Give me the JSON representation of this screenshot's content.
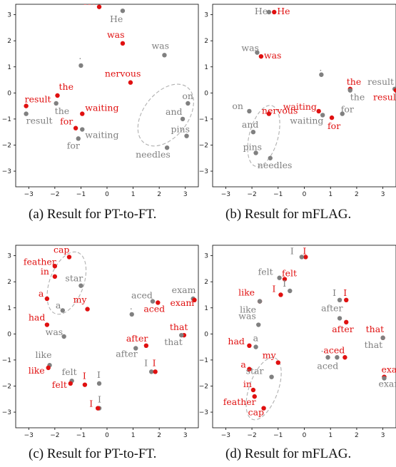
{
  "colors": {
    "gray": "#808080",
    "red": "#e01010",
    "ellipse": "#b0b0b0"
  },
  "chart_data": [
    {
      "type": "scatter",
      "caption": "(a) Result for PT-to-FT.",
      "xlim": [
        -3.5,
        3.5
      ],
      "ylim": [
        -3.6,
        3.4
      ],
      "xticks": [
        -3,
        -2,
        -1,
        0,
        1,
        2,
        3
      ],
      "yticks": [
        3,
        2,
        1,
        0,
        -1,
        -2,
        -3
      ],
      "points": [
        {
          "text": "He",
          "x": -0.3,
          "y": 3.3,
          "c": "red",
          "dx": -22,
          "dy": -3
        },
        {
          "text": "He",
          "x": 0.6,
          "y": 3.15,
          "c": "gray",
          "dx": -18,
          "dy": 16
        },
        {
          "text": "was",
          "x": 0.6,
          "y": 1.9,
          "c": "red",
          "dx": -22,
          "dy": -8
        },
        {
          "text": "was",
          "x": 2.2,
          "y": 1.45,
          "c": "gray",
          "dx": -18,
          "dy": -9
        },
        {
          "text": ".",
          "x": -1.0,
          "y": 1.05,
          "c": "gray",
          "dx": -3,
          "dy": -9
        },
        {
          "text": "nervous",
          "x": 0.9,
          "y": 0.4,
          "c": "red",
          "dx": -36,
          "dy": -8
        },
        {
          "text": "result",
          "x": -3.1,
          "y": -0.5,
          "c": "red",
          "dx": -2,
          "dy": -5
        },
        {
          "text": "the",
          "x": -1.9,
          "y": -0.1,
          "c": "red",
          "dx": 2,
          "dy": -8
        },
        {
          "text": "result",
          "x": -3.1,
          "y": -0.8,
          "c": "gray",
          "dx": 0,
          "dy": 14
        },
        {
          "text": "the",
          "x": -1.95,
          "y": -0.4,
          "c": "gray",
          "dx": -2,
          "dy": 15
        },
        {
          "text": "waiting",
          "x": -0.95,
          "y": -0.8,
          "c": "red",
          "dx": 4,
          "dy": -4
        },
        {
          "text": "for",
          "x": -1.2,
          "y": -1.35,
          "c": "red",
          "dx": -22,
          "dy": -5
        },
        {
          "text": "waiting",
          "x": -0.95,
          "y": -1.4,
          "c": "gray",
          "dx": 4,
          "dy": 12
        },
        {
          "text": "for",
          "x": -1.1,
          "y": -1.75,
          "c": "gray",
          "dx": -16,
          "dy": 14
        },
        {
          "text": "on",
          "x": 3.1,
          "y": -0.4,
          "c": "gray",
          "dx": -8,
          "dy": -6
        },
        {
          "text": "and",
          "x": 2.9,
          "y": -1.0,
          "c": "gray",
          "dx": -24,
          "dy": -6
        },
        {
          "text": "pins",
          "x": 3.05,
          "y": -1.65,
          "c": "gray",
          "dx": -22,
          "dy": -5
        },
        {
          "text": "needles",
          "x": 2.3,
          "y": -2.1,
          "c": "gray",
          "dx": -44,
          "dy": 14
        }
      ],
      "ellipses": [
        {
          "cx": 2.25,
          "cy": -0.85,
          "rx": 1.35,
          "ry": 0.85,
          "rot": -52
        }
      ]
    },
    {
      "type": "scatter",
      "caption": "(b) Result for mFLAG.",
      "xlim": [
        -3.5,
        3.5
      ],
      "ylim": [
        -3.6,
        3.4
      ],
      "xticks": [
        -3,
        -2,
        -1,
        0,
        1,
        2,
        3
      ],
      "yticks": [
        3,
        2,
        1,
        0,
        -1,
        -2,
        -3
      ],
      "points": [
        {
          "text": "He",
          "x": -1.35,
          "y": 3.1,
          "c": "gray",
          "dx": -20,
          "dy": 3
        },
        {
          "text": "He",
          "x": -1.15,
          "y": 3.1,
          "c": "red",
          "dx": 4,
          "dy": 3
        },
        {
          "text": "was",
          "x": -1.8,
          "y": 1.55,
          "c": "gray",
          "dx": -22,
          "dy": -2
        },
        {
          "text": "was",
          "x": -1.65,
          "y": 1.4,
          "c": "red",
          "dx": 4,
          "dy": 3
        },
        {
          "text": ".",
          "x": 0.65,
          "y": 0.7,
          "c": "gray",
          "dx": -3,
          "dy": -5
        },
        {
          "text": "the",
          "x": 1.75,
          "y": 0.15,
          "c": "red",
          "dx": -5,
          "dy": -6
        },
        {
          "text": "result",
          "x": 3.45,
          "y": 0.15,
          "c": "gray",
          "dx": -38,
          "dy": -6
        },
        {
          "text": "the",
          "x": 1.75,
          "y": 0.1,
          "c": "gray",
          "dx": 0,
          "dy": 14
        },
        {
          "text": "result",
          "x": 3.5,
          "y": 0.1,
          "c": "red",
          "dx": -32,
          "dy": 14
        },
        {
          "text": "on",
          "x": -2.1,
          "y": -0.7,
          "c": "gray",
          "dx": -24,
          "dy": -3
        },
        {
          "text": "nervous",
          "x": -1.35,
          "y": -0.8,
          "c": "red",
          "dx": -10,
          "dy": 0
        },
        {
          "text": "waiting",
          "x": 0.55,
          "y": -0.7,
          "c": "red",
          "dx": -50,
          "dy": -2
        },
        {
          "text": "waiting",
          "x": 0.7,
          "y": -0.85,
          "c": "gray",
          "dx": -46,
          "dy": 12
        },
        {
          "text": "for",
          "x": 1.05,
          "y": -0.95,
          "c": "red",
          "dx": -6,
          "dy": 16
        },
        {
          "text": "for",
          "x": 1.45,
          "y": -0.8,
          "c": "gray",
          "dx": -2,
          "dy": -2
        },
        {
          "text": "and",
          "x": -1.95,
          "y": -1.5,
          "c": "gray",
          "dx": -16,
          "dy": -6
        },
        {
          "text": "pins",
          "x": -1.85,
          "y": -2.3,
          "c": "gray",
          "dx": -18,
          "dy": -4
        },
        {
          "text": "needles",
          "x": -1.3,
          "y": -2.5,
          "c": "gray",
          "dx": -18,
          "dy": 14
        }
      ],
      "ellipses": [
        {
          "cx": -1.55,
          "cy": -1.65,
          "rx": 1.2,
          "ry": 0.55,
          "rot": -75
        }
      ]
    },
    {
      "type": "scatter",
      "caption": "(c) Result for PT-to-FT.",
      "xlim": [
        -3.5,
        3.5
      ],
      "ylim": [
        -3.6,
        3.4
      ],
      "xticks": [
        -3,
        -2,
        -1,
        0,
        1,
        2,
        3
      ],
      "yticks": [
        3,
        2,
        1,
        0,
        -1,
        -2,
        -3
      ],
      "points": [
        {
          "text": "cap",
          "x": -1.45,
          "y": 2.95,
          "c": "red",
          "dx": -22,
          "dy": -6
        },
        {
          "text": "feather",
          "x": -2.0,
          "y": 2.6,
          "c": "red",
          "dx": -44,
          "dy": -2
        },
        {
          "text": "in",
          "x": -2.0,
          "y": 2.2,
          "c": "red",
          "dx": -20,
          "dy": -3
        },
        {
          "text": "star",
          "x": -1.0,
          "y": 1.85,
          "c": "gray",
          "dx": -22,
          "dy": -6
        },
        {
          "text": "a",
          "x": -2.3,
          "y": 1.35,
          "c": "red",
          "dx": -12,
          "dy": -3
        },
        {
          "text": "my",
          "x": -0.75,
          "y": 0.95,
          "c": "red",
          "dx": -20,
          "dy": -9
        },
        {
          "text": "a",
          "x": -1.7,
          "y": 0.9,
          "c": "gray",
          "dx": -10,
          "dy": -3
        },
        {
          "text": "had",
          "x": -2.3,
          "y": 0.35,
          "c": "red",
          "dx": -26,
          "dy": -6
        },
        {
          "text": "was",
          "x": -1.65,
          "y": -0.1,
          "c": "gray",
          "dx": -26,
          "dy": -2
        },
        {
          "text": ".",
          "x": 0.95,
          "y": 0.75,
          "c": "gray",
          "dx": -3,
          "dy": -7
        },
        {
          "text": "aced",
          "x": 1.75,
          "y": 1.25,
          "c": "gray",
          "dx": -30,
          "dy": -4
        },
        {
          "text": "aced",
          "x": 1.95,
          "y": 1.2,
          "c": "red",
          "dx": -20,
          "dy": 13
        },
        {
          "text": "exam",
          "x": 3.3,
          "y": 1.35,
          "c": "gray",
          "dx": -30,
          "dy": -8
        },
        {
          "text": "exam",
          "x": 3.35,
          "y": 1.3,
          "c": "red",
          "dx": -34,
          "dy": 8
        },
        {
          "text": "after",
          "x": 1.5,
          "y": -0.45,
          "c": "red",
          "dx": -28,
          "dy": -6
        },
        {
          "text": "after",
          "x": 1.1,
          "y": -0.55,
          "c": "gray",
          "dx": -28,
          "dy": 12
        },
        {
          "text": "that",
          "x": 2.95,
          "y": -0.05,
          "c": "red",
          "dx": -20,
          "dy": -7
        },
        {
          "text": "that",
          "x": 2.85,
          "y": -0.05,
          "c": "gray",
          "dx": -24,
          "dy": 14
        },
        {
          "text": "like",
          "x": -2.2,
          "y": -1.2,
          "c": "gray",
          "dx": -20,
          "dy": -10
        },
        {
          "text": "like",
          "x": -2.25,
          "y": -1.3,
          "c": "red",
          "dx": -28,
          "dy": 8
        },
        {
          "text": "felt",
          "x": -1.35,
          "y": -1.8,
          "c": "gray",
          "dx": -14,
          "dy": -8
        },
        {
          "text": "felt",
          "x": -1.4,
          "y": -1.9,
          "c": "red",
          "dx": -26,
          "dy": 6
        },
        {
          "text": "I",
          "x": -0.85,
          "y": -1.95,
          "c": "red",
          "dx": -3,
          "dy": -8
        },
        {
          "text": "I",
          "x": -0.3,
          "y": -1.9,
          "c": "gray",
          "dx": -3,
          "dy": -8
        },
        {
          "text": "I",
          "x": 1.7,
          "y": -1.45,
          "c": "gray",
          "dx": -10,
          "dy": -8
        },
        {
          "text": "I",
          "x": 1.85,
          "y": -1.45,
          "c": "red",
          "dx": -4,
          "dy": -8
        },
        {
          "text": "I",
          "x": -0.3,
          "y": -2.85,
          "c": "gray",
          "dx": -2,
          "dy": -8
        },
        {
          "text": "I",
          "x": -0.35,
          "y": -2.85,
          "c": "red",
          "dx": -12,
          "dy": -2
        }
      ],
      "ellipses": [
        {
          "cx": -1.55,
          "cy": 1.95,
          "rx": 1.25,
          "ry": 0.65,
          "rot": -70
        }
      ]
    },
    {
      "type": "scatter",
      "caption": "(d) Result for mFLAG.",
      "xlim": [
        -3.5,
        3.5
      ],
      "ylim": [
        -3.6,
        3.4
      ],
      "xticks": [
        -3,
        -2,
        -1,
        0,
        1,
        2,
        3
      ],
      "yticks": [
        3,
        2,
        1,
        0,
        -1,
        -2,
        -3
      ],
      "points": [
        {
          "text": "I",
          "x": 0.05,
          "y": 2.95,
          "c": "red",
          "dx": -4,
          "dy": -4
        },
        {
          "text": "I",
          "x": -0.1,
          "y": 2.95,
          "c": "gray",
          "dx": -16,
          "dy": -4
        },
        {
          "text": "felt",
          "x": -0.75,
          "y": 2.1,
          "c": "red",
          "dx": -4,
          "dy": -4
        },
        {
          "text": "felt",
          "x": -0.95,
          "y": 2.15,
          "c": "gray",
          "dx": -30,
          "dy": -4
        },
        {
          "text": "like",
          "x": -1.7,
          "y": 1.25,
          "c": "red",
          "dx": -30,
          "dy": -8
        },
        {
          "text": "like",
          "x": -1.7,
          "y": 1.25,
          "c": "gray",
          "dx": -28,
          "dy": 16
        },
        {
          "text": "I",
          "x": -0.9,
          "y": 1.5,
          "c": "red",
          "dx": -12,
          "dy": -4
        },
        {
          "text": "I",
          "x": -0.55,
          "y": 1.65,
          "c": "gray",
          "dx": -10,
          "dy": -6
        },
        {
          "text": "was",
          "x": -1.75,
          "y": 0.35,
          "c": "gray",
          "dx": -28,
          "dy": -8
        },
        {
          "text": "I",
          "x": 1.35,
          "y": 1.3,
          "c": "gray",
          "dx": -10,
          "dy": -6
        },
        {
          "text": "I",
          "x": 1.6,
          "y": 1.3,
          "c": "red",
          "dx": -4,
          "dy": -6
        },
        {
          "text": "after",
          "x": 1.35,
          "y": 0.6,
          "c": "gray",
          "dx": -26,
          "dy": -10
        },
        {
          "text": "after",
          "x": 1.6,
          "y": 0.45,
          "c": "red",
          "dx": -20,
          "dy": 14
        },
        {
          "text": "that",
          "x": 3.0,
          "y": -0.15,
          "c": "red",
          "dx": -24,
          "dy": -8
        },
        {
          "text": "that",
          "x": 3.0,
          "y": -0.15,
          "c": "gray",
          "dx": -26,
          "dy": 14
        },
        {
          "text": "had",
          "x": -2.1,
          "y": -0.45,
          "c": "red",
          "dx": -30,
          "dy": -2
        },
        {
          "text": "a",
          "x": -1.85,
          "y": -0.5,
          "c": "gray",
          "dx": -4,
          "dy": -8
        },
        {
          "text": ".",
          "x": 0.9,
          "y": -0.9,
          "c": "gray",
          "dx": -10,
          "dy": -8
        },
        {
          "text": "aced",
          "x": 1.55,
          "y": -0.9,
          "c": "red",
          "dx": -30,
          "dy": -6
        },
        {
          "text": "aced",
          "x": 1.25,
          "y": -0.9,
          "c": "gray",
          "dx": -28,
          "dy": 16
        },
        {
          "text": "my",
          "x": -1.0,
          "y": -1.1,
          "c": "red",
          "dx": -22,
          "dy": -6
        },
        {
          "text": "a",
          "x": -2.1,
          "y": -1.35,
          "c": "red",
          "dx": -12,
          "dy": -2
        },
        {
          "text": "star",
          "x": -1.25,
          "y": -1.65,
          "c": "gray",
          "dx": -36,
          "dy": -4
        },
        {
          "text": "in",
          "x": -1.95,
          "y": -2.15,
          "c": "red",
          "dx": -14,
          "dy": -4
        },
        {
          "text": "feather",
          "x": -1.9,
          "y": -2.4,
          "c": "red",
          "dx": -44,
          "dy": 12
        },
        {
          "text": "cap",
          "x": -1.55,
          "y": -2.85,
          "c": "red",
          "dx": -22,
          "dy": 10
        },
        {
          "text": "exam",
          "x": 3.05,
          "y": -1.65,
          "c": "red",
          "dx": -4,
          "dy": -6
        },
        {
          "text": "exam",
          "x": 3.05,
          "y": -1.7,
          "c": "gray",
          "dx": -8,
          "dy": 12
        }
      ],
      "ellipses": [
        {
          "cx": -1.55,
          "cy": -2.1,
          "rx": 1.25,
          "ry": 0.55,
          "rot": -70
        }
      ]
    }
  ]
}
